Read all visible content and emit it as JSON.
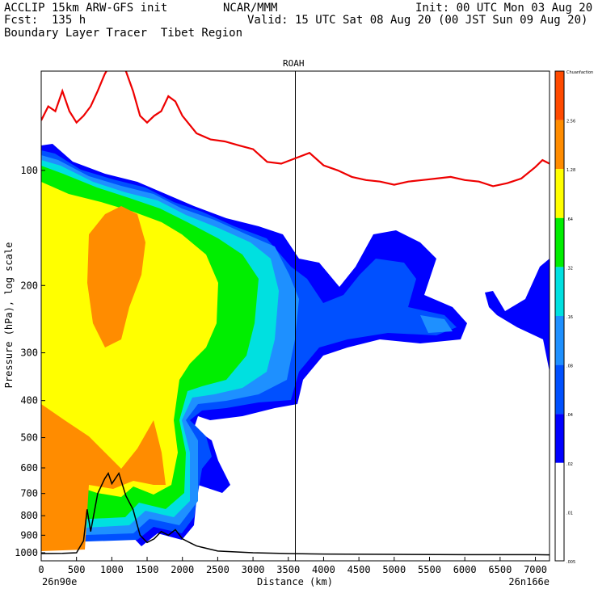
{
  "header": {
    "line1_left": "ACCLIP 15km ARW-GFS init",
    "line1_center": "NCAR/MMM",
    "line1_right": "Init: 00 UTC Mon 03 Aug 20",
    "line2_left": "Fcst:  135 h",
    "line2_right": "Valid: 15 UTC Sat 08 Aug 20 (00 JST Sun 09 Aug 20)",
    "line3_left": "Boundary Layer Tracer  Tibet Region"
  },
  "chart_data": {
    "type": "heatmap",
    "title": "ROAH",
    "xlabel": "Distance (km)",
    "ylabel": "Pressure (hPa), log scale",
    "x_start_label": "26n90e",
    "x_end_label": "26n166e",
    "xlim": [
      0,
      7200
    ],
    "ylim": [
      1050,
      55
    ],
    "y_scale": "log",
    "x_ticks": [
      0,
      500,
      1000,
      1500,
      2000,
      2500,
      3000,
      3500,
      4000,
      4500,
      5000,
      5500,
      6000,
      6500,
      7000
    ],
    "x_tick_labels": [
      "0",
      "500",
      "1000",
      "1500",
      "2000",
      "2500",
      "3000",
      "3500",
      "4000",
      "4500",
      "5000",
      "5500",
      "6000",
      "6500",
      "7000"
    ],
    "y_ticks": [
      100,
      200,
      300,
      400,
      500,
      600,
      700,
      800,
      900,
      1000
    ],
    "y_tick_labels": [
      "100",
      "200",
      "300",
      "400",
      "500",
      "600",
      "700",
      "800",
      "900",
      "1000"
    ],
    "vertical_marker_x": 3600,
    "colorbar": {
      "levels": [
        "Chuanfaction",
        "2.56",
        "1.28",
        ".64",
        ".32",
        ".16",
        ".08",
        ".04",
        ".02",
        ".01",
        ".005"
      ],
      "colors": [
        "#ff4a00",
        "#ff8c00",
        "#ffff00",
        "#00ee00",
        "#00e0e0",
        "#1e90ff",
        "#0050ff",
        "#0000ff",
        "#ffffff",
        "#ffffff"
      ]
    },
    "series": [
      {
        "kind": "tropopause-line",
        "color": "#ee0000",
        "x": [
          0,
          100,
          200,
          300,
          400,
          500,
          600,
          700,
          800,
          900,
          1000,
          1100,
          1200,
          1300,
          1400,
          1500,
          1600,
          1700,
          1800,
          1900,
          2000,
          2200,
          2400,
          2600,
          2800,
          3000,
          3200,
          3400,
          3600,
          3800,
          4000,
          4200,
          4400,
          4600,
          4800,
          5000,
          5200,
          5400,
          5600,
          5800,
          6000,
          6200,
          6400,
          6600,
          6800,
          7000,
          7100,
          7200
        ],
        "y": [
          74,
          68,
          70,
          62,
          70,
          75,
          72,
          68,
          62,
          56,
          52,
          53,
          55,
          62,
          72,
          75,
          72,
          70,
          64,
          66,
          72,
          80,
          83,
          84,
          86,
          88,
          95,
          96,
          93,
          90,
          97,
          100,
          104,
          106,
          107,
          109,
          107,
          106,
          105,
          104,
          106,
          107,
          110,
          108,
          105,
          98,
          94,
          96
        ]
      },
      {
        "kind": "terrain-line",
        "color": "#000000",
        "x": [
          0,
          300,
          500,
          600,
          650,
          700,
          800,
          900,
          950,
          1000,
          1100,
          1200,
          1300,
          1400,
          1500,
          1600,
          1700,
          1800,
          1900,
          2000,
          2100,
          2200,
          2500,
          3000,
          3500,
          4000,
          5000,
          6000,
          7000,
          7200
        ],
        "y": [
          1005,
          1004,
          1000,
          930,
          770,
          880,
          700,
          640,
          620,
          660,
          620,
          710,
          770,
          900,
          940,
          920,
          880,
          900,
          870,
          920,
          940,
          960,
          990,
          1000,
          1005,
          1008,
          1010,
          1012,
          1012,
          1013
        ]
      }
    ]
  }
}
